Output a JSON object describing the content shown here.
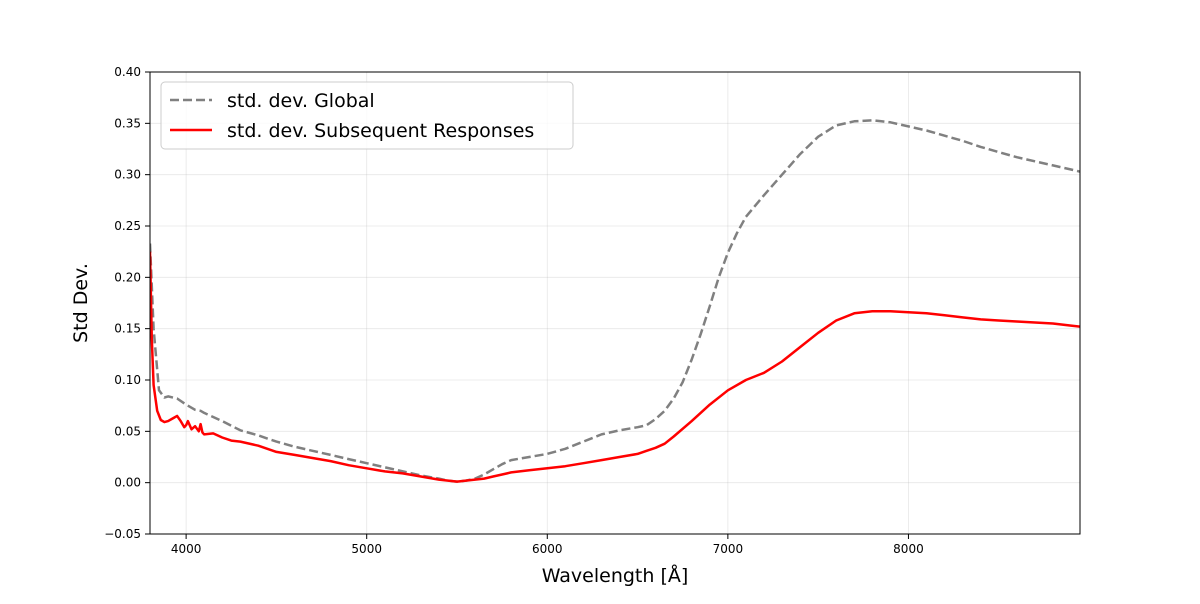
{
  "chart_data": {
    "type": "line",
    "title": "",
    "xlabel": "Wavelength [Å]",
    "ylabel": "Std Dev.",
    "xlim": [
      3800,
      8950
    ],
    "ylim": [
      -0.05,
      0.4
    ],
    "grid": true,
    "legend_position": "upper-left",
    "x_ticks": [
      4000,
      5000,
      6000,
      7000,
      8000
    ],
    "x_tick_labels": [
      "4000",
      "5000",
      "6000",
      "7000",
      "8000"
    ],
    "y_ticks": [
      -0.05,
      0.0,
      0.05,
      0.1,
      0.15,
      0.2,
      0.25,
      0.3,
      0.35,
      0.4
    ],
    "y_tick_labels": [
      "−0.05",
      "0.00",
      "0.05",
      "0.10",
      "0.15",
      "0.20",
      "0.25",
      "0.30",
      "0.35",
      "0.40"
    ],
    "series": [
      {
        "name": "std. dev. Global",
        "color": "#808080",
        "style": "dashed",
        "x": [
          3800,
          3820,
          3850,
          3880,
          3900,
          3950,
          4000,
          4050,
          4080,
          4100,
          4150,
          4200,
          4300,
          4400,
          4500,
          4600,
          4700,
          4800,
          4900,
          5000,
          5100,
          5200,
          5300,
          5400,
          5450,
          5500,
          5550,
          5600,
          5650,
          5700,
          5750,
          5800,
          5900,
          6000,
          6100,
          6200,
          6300,
          6400,
          6500,
          6550,
          6600,
          6650,
          6700,
          6750,
          6800,
          6850,
          6900,
          6950,
          7000,
          7050,
          7100,
          7200,
          7300,
          7400,
          7500,
          7600,
          7700,
          7800,
          7850,
          7900,
          8000,
          8100,
          8200,
          8300,
          8400,
          8500,
          8600,
          8700,
          8800,
          8900,
          8950
        ],
        "y": [
          0.233,
          0.15,
          0.09,
          0.083,
          0.084,
          0.082,
          0.076,
          0.071,
          0.07,
          0.068,
          0.064,
          0.06,
          0.051,
          0.046,
          0.04,
          0.035,
          0.031,
          0.027,
          0.023,
          0.019,
          0.015,
          0.011,
          0.007,
          0.004,
          0.002,
          0.001,
          0.002,
          0.004,
          0.008,
          0.013,
          0.018,
          0.022,
          0.025,
          0.028,
          0.033,
          0.04,
          0.047,
          0.051,
          0.054,
          0.056,
          0.062,
          0.07,
          0.082,
          0.098,
          0.12,
          0.145,
          0.172,
          0.2,
          0.224,
          0.243,
          0.259,
          0.28,
          0.3,
          0.32,
          0.337,
          0.348,
          0.352,
          0.353,
          0.352,
          0.351,
          0.347,
          0.343,
          0.338,
          0.333,
          0.327,
          0.322,
          0.317,
          0.313,
          0.309,
          0.305,
          0.303
        ]
      },
      {
        "name": "std. dev. Subsequent Responses",
        "color": "#ff0000",
        "style": "solid",
        "x": [
          3800,
          3810,
          3820,
          3840,
          3860,
          3880,
          3900,
          3930,
          3950,
          3970,
          3990,
          4000,
          4010,
          4030,
          4050,
          4070,
          4080,
          4090,
          4100,
          4150,
          4200,
          4250,
          4300,
          4400,
          4500,
          4600,
          4700,
          4800,
          4900,
          5000,
          5100,
          5200,
          5300,
          5400,
          5450,
          5500,
          5550,
          5600,
          5650,
          5700,
          5750,
          5800,
          5900,
          6000,
          6100,
          6200,
          6300,
          6400,
          6500,
          6550,
          6600,
          6650,
          6700,
          6800,
          6900,
          7000,
          7100,
          7200,
          7300,
          7400,
          7500,
          7600,
          7700,
          7800,
          7900,
          8000,
          8100,
          8200,
          8300,
          8400,
          8500,
          8600,
          8700,
          8800,
          8900,
          8950
        ],
        "y": [
          0.225,
          0.14,
          0.095,
          0.07,
          0.061,
          0.059,
          0.06,
          0.063,
          0.065,
          0.06,
          0.054,
          0.056,
          0.06,
          0.052,
          0.055,
          0.05,
          0.057,
          0.049,
          0.047,
          0.048,
          0.044,
          0.041,
          0.04,
          0.036,
          0.03,
          0.027,
          0.024,
          0.021,
          0.017,
          0.014,
          0.011,
          0.009,
          0.006,
          0.003,
          0.002,
          0.001,
          0.002,
          0.003,
          0.004,
          0.006,
          0.008,
          0.01,
          0.012,
          0.014,
          0.016,
          0.019,
          0.022,
          0.025,
          0.028,
          0.031,
          0.034,
          0.038,
          0.045,
          0.06,
          0.076,
          0.09,
          0.1,
          0.107,
          0.118,
          0.132,
          0.146,
          0.158,
          0.165,
          0.167,
          0.167,
          0.166,
          0.165,
          0.163,
          0.161,
          0.159,
          0.158,
          0.157,
          0.156,
          0.155,
          0.153,
          0.152
        ]
      }
    ]
  }
}
